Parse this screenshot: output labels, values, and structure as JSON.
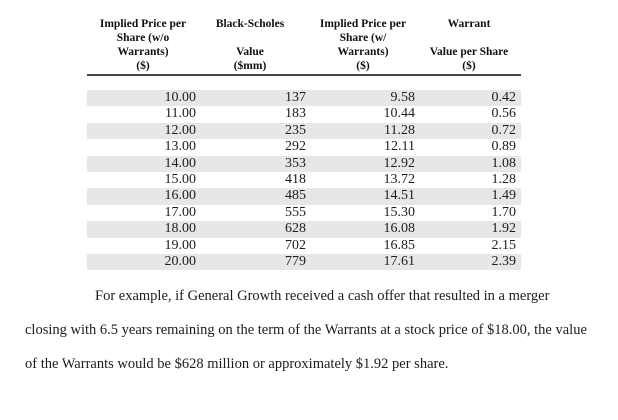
{
  "table": {
    "columns": [
      {
        "title_lines": [
          "Implied Price per",
          "Share (w/o",
          "Warrants)"
        ],
        "unit": "($)"
      },
      {
        "title_lines": [
          "Black-Scholes",
          "",
          "Value"
        ],
        "unit": "($mm)"
      },
      {
        "title_lines": [
          "Implied Price per",
          "Share (w/",
          "Warrants)"
        ],
        "unit": "($)"
      },
      {
        "title_lines": [
          "Warrant",
          "",
          "Value per Share"
        ],
        "unit": "($)"
      }
    ],
    "rows": [
      [
        "10.00",
        "137",
        "9.58",
        "0.42"
      ],
      [
        "11.00",
        "183",
        "10.44",
        "0.56"
      ],
      [
        "12.00",
        "235",
        "11.28",
        "0.72"
      ],
      [
        "13.00",
        "292",
        "12.11",
        "0.89"
      ],
      [
        "14.00",
        "353",
        "12.92",
        "1.08"
      ],
      [
        "15.00",
        "418",
        "13.72",
        "1.28"
      ],
      [
        "16.00",
        "485",
        "14.51",
        "1.49"
      ],
      [
        "17.00",
        "555",
        "15.30",
        "1.70"
      ],
      [
        "18.00",
        "628",
        "16.08",
        "1.92"
      ],
      [
        "19.00",
        "702",
        "16.85",
        "2.15"
      ],
      [
        "20.00",
        "779",
        "17.61",
        "2.39"
      ]
    ]
  },
  "paragraph": {
    "lines": [
      "For example, if General Growth received a cash offer that resulted in a merger",
      "closing with 6.5 years remaining on the term of the Warrants at a stock price of $18.00, the value",
      "of the Warrants would be $628 million or approximately $1.92 per share."
    ]
  },
  "colors": {
    "background": "#ffffff",
    "row_shade": "#e7e7e7",
    "text": "#1d1d1d",
    "header_text": "#111111",
    "rule": "#444444"
  }
}
